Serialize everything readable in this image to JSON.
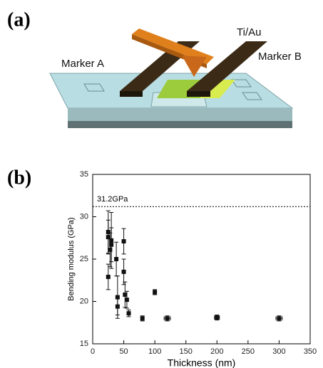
{
  "diagram": {
    "panel_label": "(a)",
    "electrode_label": "Ti/Au",
    "marker_a": "Marker A",
    "marker_b": "Marker B"
  },
  "chart_data": {
    "type": "scatter",
    "panel_label": "(b)",
    "xlabel": "Thickness (nm)",
    "ylabel": "Bending modulus (GPa)",
    "xlim": [
      0,
      350
    ],
    "ylim": [
      15,
      35
    ],
    "xticks": [
      0,
      50,
      100,
      150,
      200,
      250,
      300,
      350
    ],
    "yticks": [
      15,
      20,
      25,
      30,
      35
    ],
    "color": "#111111",
    "x": [
      25,
      25,
      25,
      28,
      30,
      30,
      38,
      40,
      40,
      50,
      50,
      52,
      55,
      58,
      80,
      100,
      120,
      200,
      300
    ],
    "values": [
      28.2,
      27.6,
      22.9,
      26.1,
      27.2,
      26.7,
      25.0,
      20.5,
      19.4,
      27.1,
      23.5,
      20.8,
      20.2,
      18.6,
      18.0,
      21.1,
      18.0,
      18.1,
      18.0
    ],
    "y_err": [
      2.5,
      2.0,
      1.5,
      2.0,
      3.3,
      2.0,
      2.0,
      2.5,
      1.0,
      1.5,
      1.5,
      1.5,
      1.0,
      0.4,
      0.3,
      0.3,
      0.3,
      0.3,
      0.3
    ],
    "x_err": [
      0,
      0,
      0,
      0,
      0,
      0,
      0,
      0,
      0,
      0,
      0,
      0,
      0,
      0,
      0,
      0,
      5,
      4,
      5
    ],
    "reference_line": {
      "value": 31.2,
      "label": "31.2GPa"
    }
  }
}
